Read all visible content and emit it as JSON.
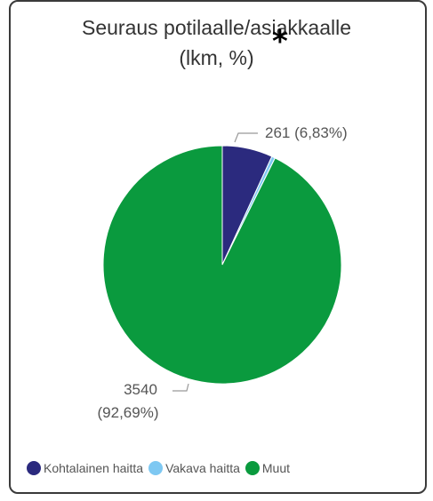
{
  "chart_data": {
    "type": "pie",
    "title": "Seuraus potilaalle/asiakkaalle",
    "subtitle": "(lkm, %)",
    "annotation": "*",
    "categories": [
      "Kohtalainen haitta",
      "Vakava haitta",
      "Muut"
    ],
    "values": [
      261,
      18,
      3540
    ],
    "colors": [
      "#2b2a7e",
      "#7ec8f2",
      "#0a9a3e"
    ],
    "data_labels": [
      {
        "category": "Kohtalainen haitta",
        "count": "261",
        "percent": "(6,83%)"
      },
      {
        "category": "Muut",
        "count": "3540",
        "percent": "(92,69%)"
      }
    ],
    "legend_position": "bottom-left"
  }
}
